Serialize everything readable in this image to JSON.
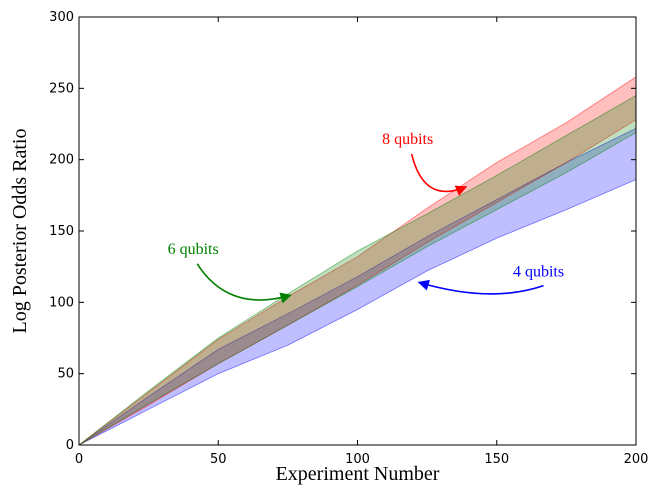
{
  "chart_data": {
    "type": "area",
    "xlabel": "Experiment Number",
    "ylabel": "Log Posterior Odds Ratio",
    "xlim": [
      0,
      200
    ],
    "ylim": [
      0,
      300
    ],
    "xticks": [
      0,
      50,
      100,
      150,
      200
    ],
    "yticks": [
      0,
      50,
      100,
      150,
      200,
      250,
      300
    ],
    "grid": false,
    "x": [
      0,
      25,
      50,
      75,
      100,
      125,
      150,
      175,
      200
    ],
    "series": [
      {
        "name": "4 qubits",
        "color": "#0000ff",
        "lower": [
          0,
          25,
          50,
          70,
          95,
          122,
          145,
          165,
          186
        ],
        "upper": [
          0,
          34,
          67,
          92,
          118,
          146,
          172,
          198,
          222
        ]
      },
      {
        "name": "6 qubits",
        "color": "#008000",
        "lower": [
          0,
          29,
          57,
          84,
          111,
          139,
          165,
          191,
          219
        ],
        "upper": [
          0,
          38,
          75,
          106,
          136,
          162,
          189,
          217,
          245
        ]
      },
      {
        "name": "8 qubits",
        "color": "#ff0000",
        "lower": [
          0,
          28,
          57,
          84,
          112,
          142,
          170,
          198,
          228
        ],
        "upper": [
          0,
          37,
          74,
          104,
          132,
          166,
          198,
          226,
          258
        ]
      }
    ],
    "annotations": [
      {
        "text": "8 qubits",
        "color": "#ff0000",
        "text_x": 118,
        "text_y": 211,
        "arrow_to": [
          139,
          181
        ]
      },
      {
        "text": "6 qubits",
        "color": "#008000",
        "text_x": 41,
        "text_y": 134,
        "arrow_to": [
          76,
          105
        ]
      },
      {
        "text": "4 qubits",
        "color": "#0000ff",
        "text_x": 165,
        "text_y": 118,
        "arrow_to": [
          122,
          114
        ]
      }
    ]
  }
}
